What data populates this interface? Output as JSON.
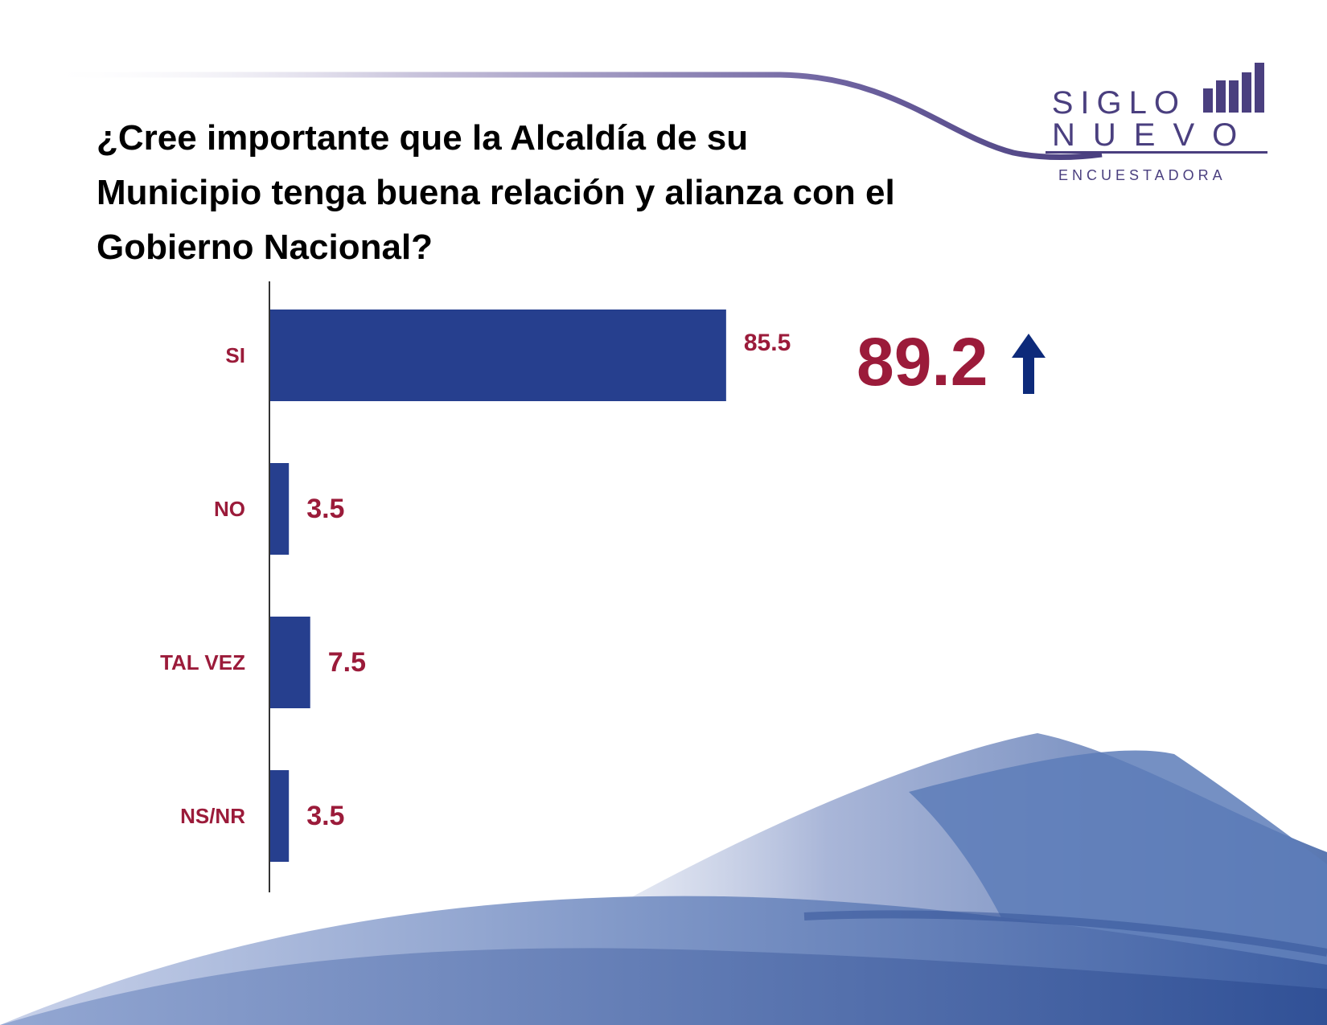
{
  "page": {
    "title": "¿Cree importante que la Alcaldía de su\nMunicipio tenga buena relación y alianza con el\nGobierno Nacional?"
  },
  "logo": {
    "word1": "SIGLO",
    "word2": "NUEVO",
    "subtitle": "ENCUESTADORA",
    "color": "#4a3f7f"
  },
  "highlight": {
    "value": "89.2",
    "arrow_icon": "arrow-up-icon",
    "arrow_color": "#0d2a7a",
    "value_color": "#9b1b3a"
  },
  "colors": {
    "bar": "#263f8e",
    "label": "#9b1b3a",
    "axis": "#333333"
  },
  "chart_data": {
    "type": "bar",
    "orientation": "horizontal",
    "categories": [
      "SI",
      "NO",
      "TAL VEZ",
      "NS/NR"
    ],
    "values": [
      85.5,
      3.5,
      7.5,
      3.5
    ],
    "value_labels": [
      "85.5",
      "3.5",
      "7.5",
      "3.5"
    ],
    "title": "¿Cree importante que la Alcaldía de su Municipio tenga buena relación y alianza con el Gobierno Nacional?",
    "xlabel": "",
    "ylabel": "",
    "xlim": [
      0,
      100
    ],
    "grid": false,
    "legend": "none"
  }
}
